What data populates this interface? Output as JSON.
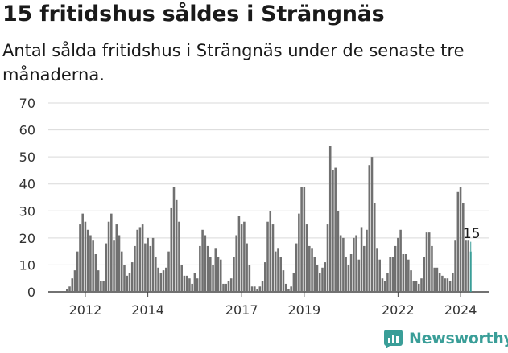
{
  "title": "15 fritidshus såldes i Strängnäs",
  "subtitle": "Antal sålda fritidshus i Strängnäs under de senaste tre månaderna.",
  "brand": {
    "name": "Newsworthy",
    "color": "#3a9e98"
  },
  "chart_data": {
    "type": "bar",
    "title": "15 fritidshus såldes i Strängnäs",
    "xlabel": "",
    "ylabel": "",
    "ylim": [
      0,
      70
    ],
    "yticks": [
      0,
      10,
      20,
      30,
      40,
      50,
      60,
      70
    ],
    "xtick_labels": [
      "2012",
      "2014",
      "2017",
      "2019",
      "2022",
      "2024"
    ],
    "xtick_index": [
      7,
      31,
      67,
      91,
      127,
      151
    ],
    "grid": true,
    "bar_color": "#707070",
    "highlight_color": "#3a9e98",
    "highlight_label": "15",
    "values": [
      1,
      2,
      5,
      8,
      15,
      25,
      29,
      26,
      23,
      21,
      19,
      14,
      8,
      4,
      4,
      18,
      26,
      29,
      19,
      25,
      21,
      15,
      10,
      6,
      7,
      11,
      17,
      23,
      24,
      25,
      18,
      20,
      17,
      20,
      13,
      9,
      7,
      8,
      9,
      15,
      31,
      39,
      34,
      26,
      10,
      6,
      6,
      5,
      3,
      7,
      5,
      17,
      23,
      21,
      17,
      13,
      10,
      16,
      13,
      12,
      3,
      3,
      4,
      5,
      13,
      21,
      28,
      25,
      26,
      18,
      10,
      2,
      2,
      1,
      2,
      4,
      11,
      26,
      30,
      25,
      15,
      16,
      13,
      8,
      3,
      1,
      2,
      7,
      18,
      29,
      39,
      39,
      25,
      17,
      16,
      13,
      10,
      7,
      9,
      11,
      25,
      54,
      45,
      46,
      30,
      21,
      20,
      13,
      10,
      14,
      20,
      21,
      12,
      24,
      17,
      23,
      47,
      50,
      33,
      16,
      12,
      5,
      4,
      7,
      13,
      13,
      17,
      20,
      23,
      14,
      14,
      12,
      8,
      4,
      4,
      3,
      5,
      13,
      22,
      22,
      17,
      9,
      9,
      7,
      6,
      5,
      5,
      4,
      7,
      19,
      37,
      39,
      33,
      19,
      19,
      15
    ]
  }
}
